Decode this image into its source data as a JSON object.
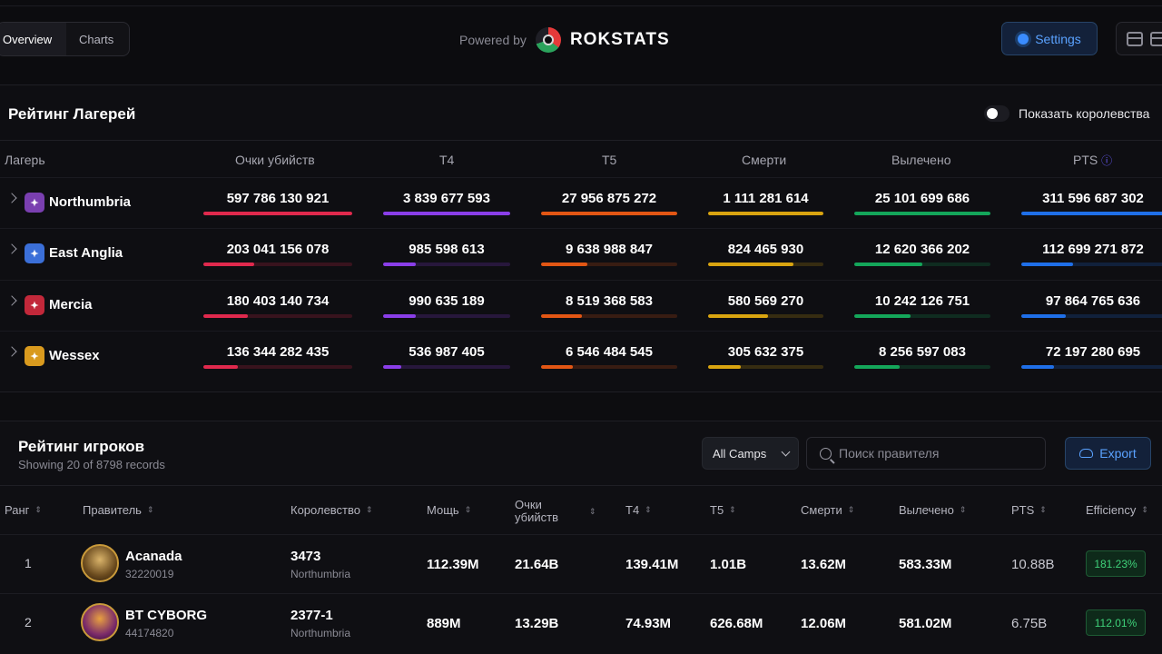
{
  "topbar": {
    "tabs": [
      {
        "label": "Overview"
      },
      {
        "label": "Charts"
      }
    ],
    "powered_label": "Powered by",
    "brand": "ROKSTATS",
    "settings_label": "Settings"
  },
  "camps": {
    "title": "Рейтинг Лагерей",
    "toggle_label": "Показать королевства",
    "toggle_on": false,
    "columns": [
      "Лагерь",
      "Очки убийств",
      "T4",
      "T5",
      "Смерти",
      "Вылечено",
      "PTS"
    ],
    "colors": {
      "kills": "#e0294d",
      "t4": "#8a3ee8",
      "t5": "#e25614",
      "deaths": "#d9a410",
      "healed": "#14a65a",
      "pts": "#1f6fe8"
    },
    "rows": [
      {
        "name": "Northumbria",
        "emblem_color": "#7a3fb0",
        "kills": "597 786 130 921",
        "kills_pct": 1.0,
        "t4": "3 839 677 593",
        "t4_pct": 1.0,
        "t5": "27 956 875 272",
        "t5_pct": 1.0,
        "deaths": "1 111 281 614",
        "deaths_pct": 1.0,
        "healed": "25 101 699 686",
        "healed_pct": 1.0,
        "pts": "311 596 687 302",
        "pts_pct": 1.0
      },
      {
        "name": "East Anglia",
        "emblem_color": "#3b6fd8",
        "kills": "203 041 156 078",
        "kills_pct": 0.34,
        "t4": "985 598 613",
        "t4_pct": 0.26,
        "t5": "9 638 988 847",
        "t5_pct": 0.34,
        "deaths": "824 465 930",
        "deaths_pct": 0.74,
        "healed": "12 620 366 202",
        "healed_pct": 0.5,
        "pts": "112 699 271 872",
        "pts_pct": 0.36
      },
      {
        "name": "Mercia",
        "emblem_color": "#c2283a",
        "kills": "180 403 140 734",
        "kills_pct": 0.3,
        "t4": "990 635 189",
        "t4_pct": 0.26,
        "t5": "8 519 368 583",
        "t5_pct": 0.3,
        "deaths": "580 569 270",
        "deaths_pct": 0.52,
        "healed": "10 242 126 751",
        "healed_pct": 0.41,
        "pts": "97 864 765 636",
        "pts_pct": 0.31
      },
      {
        "name": "Wessex",
        "emblem_color": "#d99a1e",
        "kills": "136 344 282 435",
        "kills_pct": 0.23,
        "t4": "536 987 405",
        "t4_pct": 0.14,
        "t5": "6 546 484 545",
        "t5_pct": 0.23,
        "deaths": "305 632 375",
        "deaths_pct": 0.28,
        "healed": "8 256 597 083",
        "healed_pct": 0.33,
        "pts": "72 197 280 695",
        "pts_pct": 0.23
      }
    ]
  },
  "players": {
    "title": "Рейтинг игроков",
    "subtitle": "Showing 20 of 8798 records",
    "camp_select": "All Camps",
    "search_placeholder": "Поиск правителя",
    "export_label": "Export",
    "columns": [
      "Ранг",
      "Правитель",
      "Королевство",
      "Мощь",
      "Очки убийств",
      "T4",
      "T5",
      "Смерти",
      "Вылечено",
      "PTS",
      "Efficiency"
    ],
    "rows": [
      {
        "rank": "1",
        "name": "Acanada",
        "id": "32220019",
        "kingdom": "3473",
        "camp": "Northumbria",
        "power": "112.39M",
        "kills": "21.64B",
        "t4": "139.41M",
        "t5": "1.01B",
        "deaths": "13.62M",
        "healed": "583.33M",
        "pts": "10.88B",
        "efficiency": "181.23%"
      },
      {
        "rank": "2",
        "name": "BT CYBORG",
        "id": "44174820",
        "kingdom": "2377-1",
        "camp": "Northumbria",
        "power": "889M",
        "kills": "13.29B",
        "t4": "74.93M",
        "t5": "626.68M",
        "deaths": "12.06M",
        "healed": "581.02M",
        "pts": "6.75B",
        "efficiency": "112.01%"
      }
    ]
  }
}
